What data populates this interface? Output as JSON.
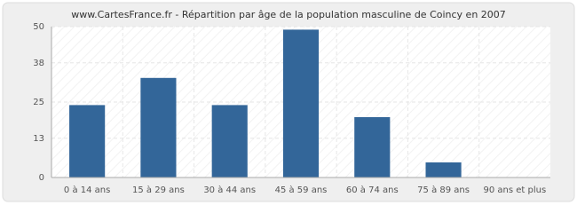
{
  "chart_data": {
    "type": "bar",
    "title": "www.CartesFrance.fr - Répartition par âge de la population masculine de Coincy en 2007",
    "categories": [
      "0 à 14 ans",
      "15 à 29 ans",
      "30 à 44 ans",
      "45 à 59 ans",
      "60 à 74 ans",
      "75 à 89 ans",
      "90 ans et plus"
    ],
    "values": [
      24,
      33,
      24,
      49,
      20,
      5,
      0
    ],
    "color": "#336699",
    "ylim": [
      0,
      50
    ],
    "yticks": [
      0,
      13,
      25,
      38,
      50
    ],
    "grid": true
  }
}
